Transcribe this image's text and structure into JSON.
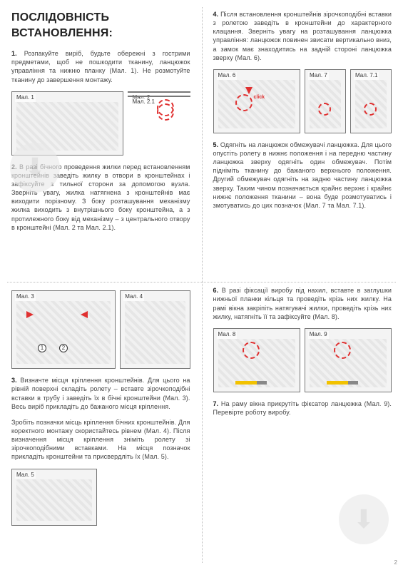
{
  "title": "ПОСЛІДОВНІСТЬ ВСТАНОВЛЕННЯ:",
  "steps": {
    "s1": "1. Розпакуйте виріб, будьте обережні з гострими предметами, щоб не пошкодити тканину, ланцюжок управління та нижню планку (Мал. 1). Не розмотуйте тканину до завершення монтажу.",
    "s2": "2. В разі бічного проведення жилки перед встановленням кронштейнів заведіть жилку в отвори в кронштейнах і зафіксуйте з тильної сторони за допомогою вузла. Зверніть увагу, жилка натягнена з кронштейнів має виходити по­різному. З боку розташування механізму жилка виходить з внутрішнього боку кронштейна, а з протилежного боку від механізму – з центрального отвору в кронштейні (Мал. 2 та Мал. 2.1).",
    "s3a": "3. Визначте місця кріплення кронштейнів. Для цього на рівній поверхні складіть ролету – вставте зірочкоподібні вставки в трубу і заведіть їх в бічні кронштейни (Мал. 3). Весь виріб прикладіть до бажаного місця кріплення.",
    "s3b": "Зробіть позначки місць кріплення бічних кронштейнів. Для коректного монтажу скористайтесь рівнем (Мал. 4). Після визначення місця кріплення зніміть ролету зі зірочкоподібними вставками. На місця позначок прикладіть кронштейни та присвердліть їх (Мал. 5).",
    "s4": "4. Після встановлення кронштейнів зірочкоподібні вставки з ролетою заведіть в кронштейни до характерного клацання. Зверніть увагу на розташування ланцюжка управління: ланцюжок повинен звисати вертикально вниз, а замок має знаходитись на задній стороні ланцюжка зверху (Мал. 6).",
    "s5": "5. Одягніть на ланцюжок обмежувачі ланцюжка. Для цього опустіть ролету в нижнє положення і на передню частину ланцюжка зверху одягніть один обмежувач. Потім підніміть тканину до бажаного верхнього положення. Другий обмежувач одягніть на задню частину ланцюжка зверху. Таким чином позначається крайнє верхнє і крайнє нижнє положення тканини – вона буде розмотуватись і змотуватись до цих позначок (Мал. 7 та Мал. 7.1).",
    "s6": "6. В разі фіксації виробу під нахил, вставте в заглушки нижньої планки кільця та проведіть крізь них жилку. На рамі вікна закріпіть натягувачі жилки, проведіть крізь них жилку, натягніть її та зафіксуйте (Мал. 8).",
    "s7": "7. На раму вікна прикрутіть фіксатор ланцюжка (Мал. 9). Перевірте роботу виробу."
  },
  "figlabels": {
    "f1": "Мал. 1",
    "f2": "Мал. 2",
    "f21": "Мал. 2.1",
    "f3": "Мал. 3",
    "f4": "Мал. 4",
    "f5": "Мал. 5",
    "f6": "Мал. 6",
    "f7": "Мал. 7",
    "f71": "Мал. 7.1",
    "f8": "Мал. 8",
    "f9": "Мал. 9"
  },
  "click_text": "click",
  "watermark_glyph": "⬇",
  "page_number": "2",
  "colors": {
    "text": "#333333",
    "border": "#777777",
    "fig_bg": "#f4f4f4",
    "accent": "#e03030",
    "dotted": "#bbbbbb",
    "watermark_bg": "#e9e9e9"
  }
}
